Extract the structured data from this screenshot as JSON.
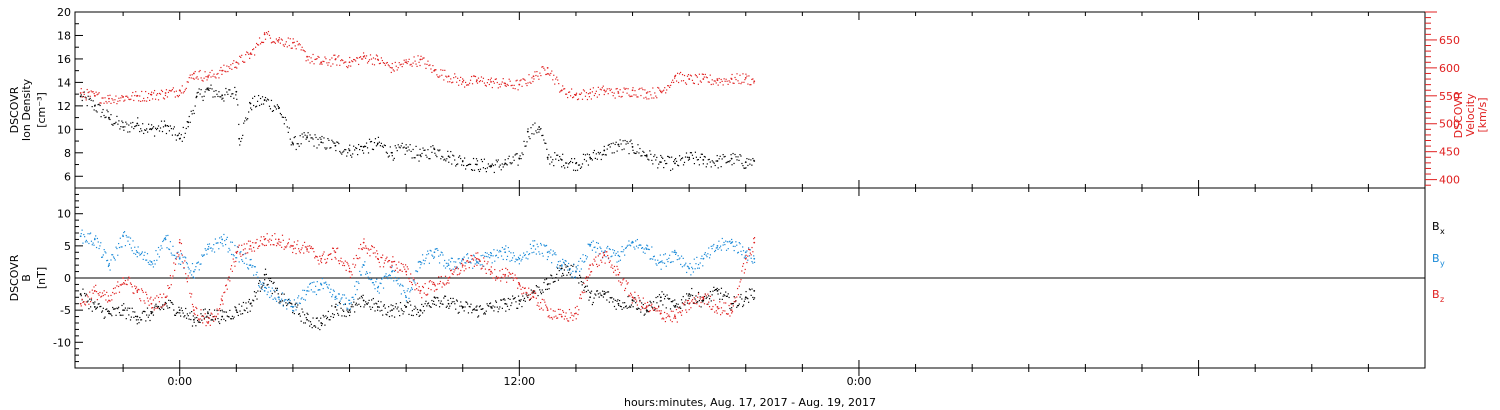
{
  "chart_data": [
    {
      "id": "top-panel",
      "type": "scatter",
      "ylabel_left": [
        "DSCOVR",
        "Ion Density",
        "[cm⁻³]"
      ],
      "ylabel_right": [
        "DSCOVR",
        "Velocity",
        "[km/s]"
      ],
      "left_ticks": [
        "6",
        "8",
        "10",
        "12",
        "14",
        "16",
        "18",
        "20"
      ],
      "right_ticks": [
        "400",
        "450",
        "500",
        "550",
        "600",
        "650"
      ],
      "left_ylim": [
        5,
        20
      ],
      "right_ylim": [
        385,
        700
      ],
      "series": [
        {
          "axis": "left",
          "color": "#000000",
          "x": [
            -3.5,
            -3.0,
            -2.5,
            -2.0,
            -1.5,
            -1.0,
            -0.5,
            0.0,
            0.3,
            0.6,
            1.0,
            1.5,
            2.0,
            2.1,
            2.5,
            3.0,
            3.5,
            4.0,
            4.5,
            5.0,
            5.5,
            6.0,
            6.5,
            7.0,
            7.5,
            8.0,
            8.5,
            9.0,
            9.5,
            10.0,
            10.5,
            11.0,
            11.5,
            12.0,
            12.3,
            12.7,
            13.0,
            13.5,
            14.0,
            14.5,
            15.0,
            15.5,
            16.0,
            16.5,
            17.0,
            17.5,
            18.0,
            18.5,
            19.0,
            19.5,
            20.0,
            20.3
          ],
          "y": [
            12.8,
            12.0,
            11.0,
            10.2,
            10.5,
            10.0,
            10.3,
            9.2,
            10.6,
            12.8,
            13.4,
            12.9,
            13.2,
            9.2,
            12.2,
            12.5,
            11.8,
            8.8,
            9.3,
            8.9,
            8.6,
            8.2,
            8.5,
            8.8,
            8.0,
            8.4,
            7.8,
            8.3,
            7.7,
            7.3,
            7.0,
            6.9,
            7.1,
            7.5,
            9.8,
            10.2,
            7.6,
            7.4,
            7.1,
            7.6,
            8.2,
            8.7,
            8.5,
            7.8,
            7.2,
            7.1,
            7.6,
            7.4,
            7.3,
            7.5,
            7.2,
            7.3
          ]
        },
        {
          "axis": "right",
          "color": "#e02020",
          "x": [
            -3.5,
            -3.0,
            -2.5,
            -2.0,
            -1.5,
            -1.0,
            -0.5,
            0.0,
            0.5,
            1.0,
            1.5,
            2.0,
            2.5,
            3.0,
            3.5,
            4.0,
            4.5,
            5.0,
            5.5,
            6.0,
            6.5,
            7.0,
            7.5,
            8.0,
            8.5,
            9.0,
            9.5,
            10.0,
            10.5,
            11.0,
            11.5,
            12.0,
            12.5,
            13.0,
            13.5,
            14.0,
            14.5,
            15.0,
            15.5,
            16.0,
            16.5,
            17.0,
            17.5,
            18.0,
            18.5,
            19.0,
            19.5,
            20.0,
            20.3
          ],
          "y": [
            555,
            550,
            545,
            548,
            550,
            552,
            555,
            560,
            590,
            585,
            595,
            610,
            625,
            660,
            650,
            645,
            620,
            610,
            615,
            610,
            620,
            615,
            600,
            610,
            615,
            595,
            585,
            575,
            578,
            575,
            572,
            570,
            585,
            600,
            560,
            552,
            555,
            560,
            555,
            560,
            555,
            558,
            585,
            580,
            580,
            578,
            580,
            582,
            576
          ]
        }
      ]
    },
    {
      "id": "bottom-panel",
      "type": "scatter",
      "ylabel_left": [
        "DSCOVR",
        "B",
        "[nT]"
      ],
      "left_ticks": [
        "-10",
        "-5",
        "0",
        "5",
        "10"
      ],
      "ylim": [
        -14,
        14
      ],
      "legend": [
        {
          "label": "B",
          "sub": "x",
          "color": "#000000"
        },
        {
          "label": "B",
          "sub": "y",
          "color": "#1a8ad8"
        },
        {
          "label": "B",
          "sub": "z",
          "color": "#e02020"
        }
      ],
      "series": [
        {
          "name": "Bx",
          "color": "#000000",
          "x": [
            -3.5,
            -3.0,
            -2.5,
            -2.0,
            -1.5,
            -1.0,
            -0.5,
            0.0,
            0.5,
            1.0,
            1.5,
            2.0,
            2.5,
            3.0,
            3.5,
            4.0,
            4.5,
            5.0,
            5.5,
            6.0,
            6.5,
            7.0,
            7.5,
            8.0,
            8.5,
            9.0,
            9.5,
            10.0,
            10.5,
            11.0,
            11.5,
            12.0,
            12.5,
            13.0,
            13.5,
            14.0,
            14.5,
            15.0,
            15.5,
            16.0,
            16.5,
            17.0,
            17.5,
            18.0,
            18.5,
            19.0,
            19.5,
            20.0,
            20.3
          ],
          "y": [
            -2.5,
            -4.5,
            -5.5,
            -5.0,
            -6.0,
            -5.5,
            -4.0,
            -5.0,
            -6.5,
            -5.5,
            -6.0,
            -5.0,
            -4.0,
            0.5,
            -3.0,
            -4.5,
            -6.5,
            -7.0,
            -4.5,
            -5.0,
            -3.5,
            -4.5,
            -5.0,
            -4.5,
            -5.0,
            -3.0,
            -4.0,
            -4.5,
            -5.0,
            -4.5,
            -4.0,
            -3.5,
            -2.0,
            -1.0,
            1.5,
            1.0,
            -3.0,
            -2.5,
            -4.0,
            -3.5,
            -5.0,
            -3.0,
            -4.5,
            -2.5,
            -3.5,
            -2.0,
            -4.0,
            -3.0,
            -2.0
          ]
        },
        {
          "name": "By",
          "color": "#1a8ad8",
          "x": [
            -3.5,
            -3.0,
            -2.5,
            -2.0,
            -1.5,
            -1.0,
            -0.5,
            0.0,
            0.5,
            1.0,
            1.5,
            2.0,
            2.5,
            3.0,
            3.5,
            4.0,
            4.5,
            5.0,
            5.5,
            6.0,
            6.5,
            7.0,
            7.5,
            8.0,
            8.5,
            9.0,
            9.5,
            10.0,
            10.5,
            11.0,
            11.5,
            12.0,
            12.5,
            13.0,
            13.5,
            14.0,
            14.5,
            15.0,
            15.5,
            16.0,
            16.5,
            17.0,
            17.5,
            18.0,
            18.5,
            19.0,
            19.5,
            20.0,
            20.3
          ],
          "y": [
            6.5,
            6.0,
            2.0,
            6.5,
            4.0,
            2.5,
            6.0,
            3.0,
            1.0,
            4.5,
            6.0,
            4.0,
            2.0,
            -2.0,
            -3.0,
            -4.5,
            -2.0,
            -1.0,
            -3.0,
            -4.0,
            2.0,
            -1.5,
            1.0,
            -3.0,
            2.5,
            4.0,
            2.0,
            3.0,
            2.5,
            3.5,
            4.0,
            3.0,
            5.0,
            4.0,
            2.0,
            1.0,
            5.0,
            4.0,
            3.5,
            5.5,
            4.5,
            2.5,
            4.0,
            1.5,
            3.0,
            5.0,
            5.5,
            4.0,
            3.0
          ]
        },
        {
          "name": "Bz",
          "color": "#e02020",
          "x": [
            -3.5,
            -3.0,
            -2.5,
            -2.0,
            -1.5,
            -1.0,
            -0.5,
            0.0,
            0.5,
            1.0,
            1.5,
            2.0,
            2.5,
            3.0,
            3.5,
            4.0,
            4.5,
            5.0,
            5.5,
            6.0,
            6.5,
            7.0,
            7.5,
            8.0,
            8.5,
            9.0,
            9.5,
            10.0,
            10.5,
            11.0,
            11.5,
            12.0,
            12.5,
            13.0,
            13.5,
            14.0,
            14.5,
            15.0,
            15.5,
            16.0,
            16.5,
            17.0,
            17.5,
            18.0,
            18.5,
            19.0,
            19.5,
            20.0,
            20.3
          ],
          "y": [
            -4.0,
            -2.0,
            -3.5,
            0.0,
            -2.0,
            -4.0,
            -3.0,
            5.5,
            -5.0,
            -7.0,
            -3.5,
            4.0,
            5.0,
            6.0,
            6.0,
            5.0,
            4.5,
            3.0,
            4.0,
            1.0,
            5.5,
            3.0,
            2.5,
            1.0,
            -2.0,
            -1.0,
            0.0,
            2.0,
            3.0,
            1.0,
            0.5,
            -1.0,
            -3.0,
            -5.0,
            -6.0,
            -5.5,
            2.0,
            3.5,
            0.5,
            -3.0,
            -4.5,
            -5.5,
            -6.0,
            -4.0,
            -3.0,
            -4.5,
            -5.0,
            3.0,
            5.5
          ]
        }
      ]
    }
  ],
  "x_axis": {
    "min": -3.7,
    "max": 44.0,
    "tick_labels": [
      {
        "x": 0,
        "label": "0:00"
      },
      {
        "x": 12,
        "label": "12:00"
      },
      {
        "x": 24,
        "label": "0:00"
      }
    ],
    "minor_every": 2,
    "xlabel": "hours:minutes, Aug. 17, 2017 - Aug. 19, 2017"
  }
}
